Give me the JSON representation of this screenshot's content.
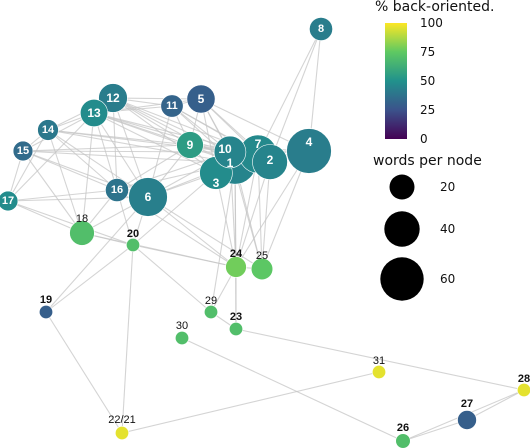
{
  "graph": {
    "nodes": [
      {
        "id": "8",
        "words": 15,
        "pct": 42,
        "label_pos": "inside"
      },
      {
        "id": "12",
        "words": 23,
        "pct": 42,
        "label_pos": "inside"
      },
      {
        "id": "11",
        "words": 14,
        "pct": 32,
        "label_pos": "inside"
      },
      {
        "id": "5",
        "words": 22,
        "pct": 30,
        "label_pos": "inside"
      },
      {
        "id": "13",
        "words": 21,
        "pct": 48,
        "label_pos": "inside"
      },
      {
        "id": "14",
        "words": 12,
        "pct": 40,
        "label_pos": "inside"
      },
      {
        "id": "15",
        "words": 11,
        "pct": 35,
        "label_pos": "inside"
      },
      {
        "id": "9",
        "words": 20,
        "pct": 55,
        "label_pos": "inside"
      },
      {
        "id": "10",
        "words": 28,
        "pct": 45,
        "label_pos": "inside"
      },
      {
        "id": "1",
        "words": 50,
        "pct": 45,
        "label_pos": "inside"
      },
      {
        "id": "3",
        "words": 30,
        "pct": 48,
        "label_pos": "inside"
      },
      {
        "id": "7",
        "words": 40,
        "pct": 47,
        "label_pos": "inside"
      },
      {
        "id": "2",
        "words": 34,
        "pct": 45,
        "label_pos": "inside"
      },
      {
        "id": "4",
        "words": 56,
        "pct": 42,
        "label_pos": "inside"
      },
      {
        "id": "16",
        "words": 15,
        "pct": 38,
        "label_pos": "inside"
      },
      {
        "id": "6",
        "words": 42,
        "pct": 43,
        "label_pos": "inside"
      },
      {
        "id": "17",
        "words": 11,
        "pct": 48,
        "label_pos": "inside"
      },
      {
        "id": "18",
        "words": 17,
        "pct": 70,
        "label_pos": "above"
      },
      {
        "id": "20",
        "words": 5,
        "pct": 70,
        "label_pos": "above"
      },
      {
        "id": "24",
        "words": 12,
        "pct": 78,
        "label_pos": "above"
      },
      {
        "id": "25",
        "words": 13,
        "pct": 74,
        "label_pos": "above"
      },
      {
        "id": "19",
        "words": 5,
        "pct": 30,
        "label_pos": "above"
      },
      {
        "id": "29",
        "words": 5,
        "pct": 70,
        "label_pos": "above"
      },
      {
        "id": "23",
        "words": 5,
        "pct": 70,
        "label_pos": "above"
      },
      {
        "id": "30",
        "words": 5,
        "pct": 70,
        "label_pos": "above"
      },
      {
        "id": "31",
        "words": 5,
        "pct": 96,
        "label_pos": "above"
      },
      {
        "id": "28",
        "words": 5,
        "pct": 96,
        "label_pos": "above"
      },
      {
        "id": "27",
        "words": 10,
        "pct": 30,
        "label_pos": "above"
      },
      {
        "id": "22/21",
        "words": 5,
        "pct": 96,
        "label_pos": "above"
      },
      {
        "id": "26",
        "words": 6,
        "pct": 70,
        "label_pos": "above"
      }
    ],
    "edges": [
      [
        "8",
        "4"
      ],
      [
        "8",
        "7"
      ],
      [
        "8",
        "2"
      ],
      [
        "12",
        "13"
      ],
      [
        "12",
        "11"
      ],
      [
        "12",
        "5"
      ],
      [
        "12",
        "9"
      ],
      [
        "12",
        "10"
      ],
      [
        "12",
        "1"
      ],
      [
        "12",
        "6"
      ],
      [
        "12",
        "14"
      ],
      [
        "12",
        "16"
      ],
      [
        "12",
        "3"
      ],
      [
        "12",
        "7"
      ],
      [
        "11",
        "5"
      ],
      [
        "11",
        "13"
      ],
      [
        "11",
        "10"
      ],
      [
        "11",
        "1"
      ],
      [
        "11",
        "9"
      ],
      [
        "11",
        "6"
      ],
      [
        "11",
        "7"
      ],
      [
        "11",
        "2"
      ],
      [
        "5",
        "10"
      ],
      [
        "5",
        "1"
      ],
      [
        "5",
        "9"
      ],
      [
        "5",
        "7"
      ],
      [
        "5",
        "13"
      ],
      [
        "5",
        "4"
      ],
      [
        "5",
        "2"
      ],
      [
        "5",
        "3"
      ],
      [
        "13",
        "14"
      ],
      [
        "13",
        "15"
      ],
      [
        "13",
        "9"
      ],
      [
        "13",
        "10"
      ],
      [
        "13",
        "1"
      ],
      [
        "13",
        "6"
      ],
      [
        "13",
        "16"
      ],
      [
        "13",
        "17"
      ],
      [
        "13",
        "18"
      ],
      [
        "13",
        "3"
      ],
      [
        "13",
        "7"
      ],
      [
        "14",
        "15"
      ],
      [
        "14",
        "9"
      ],
      [
        "14",
        "10"
      ],
      [
        "14",
        "1"
      ],
      [
        "14",
        "6"
      ],
      [
        "14",
        "16"
      ],
      [
        "14",
        "17"
      ],
      [
        "14",
        "18"
      ],
      [
        "15",
        "17"
      ],
      [
        "15",
        "9"
      ],
      [
        "15",
        "10"
      ],
      [
        "15",
        "6"
      ],
      [
        "15",
        "16"
      ],
      [
        "15",
        "1"
      ],
      [
        "15",
        "18"
      ],
      [
        "9",
        "10"
      ],
      [
        "9",
        "1"
      ],
      [
        "9",
        "3"
      ],
      [
        "9",
        "7"
      ],
      [
        "9",
        "6"
      ],
      [
        "9",
        "16"
      ],
      [
        "9",
        "2"
      ],
      [
        "9",
        "4"
      ],
      [
        "10",
        "1"
      ],
      [
        "10",
        "7"
      ],
      [
        "10",
        "2"
      ],
      [
        "10",
        "4"
      ],
      [
        "10",
        "3"
      ],
      [
        "10",
        "6"
      ],
      [
        "10",
        "16"
      ],
      [
        "10",
        "24"
      ],
      [
        "10",
        "25"
      ],
      [
        "1",
        "7"
      ],
      [
        "1",
        "2"
      ],
      [
        "1",
        "4"
      ],
      [
        "1",
        "3"
      ],
      [
        "1",
        "6"
      ],
      [
        "1",
        "16"
      ],
      [
        "1",
        "24"
      ],
      [
        "1",
        "25"
      ],
      [
        "1",
        "29"
      ],
      [
        "1",
        "23"
      ],
      [
        "7",
        "2"
      ],
      [
        "7",
        "4"
      ],
      [
        "7",
        "24"
      ],
      [
        "7",
        "25"
      ],
      [
        "7",
        "3"
      ],
      [
        "2",
        "4"
      ],
      [
        "2",
        "24"
      ],
      [
        "2",
        "25"
      ],
      [
        "4",
        "25"
      ],
      [
        "4",
        "24"
      ],
      [
        "3",
        "6"
      ],
      [
        "3",
        "24"
      ],
      [
        "3",
        "20"
      ],
      [
        "6",
        "16"
      ],
      [
        "6",
        "17"
      ],
      [
        "6",
        "18"
      ],
      [
        "6",
        "20"
      ],
      [
        "6",
        "24"
      ],
      [
        "6",
        "25"
      ],
      [
        "16",
        "17"
      ],
      [
        "16",
        "18"
      ],
      [
        "16",
        "20"
      ],
      [
        "16",
        "24"
      ],
      [
        "17",
        "18"
      ],
      [
        "17",
        "20"
      ],
      [
        "18",
        "20"
      ],
      [
        "18",
        "24"
      ],
      [
        "20",
        "19"
      ],
      [
        "20",
        "22/21"
      ],
      [
        "20",
        "24"
      ],
      [
        "19",
        "22/21"
      ],
      [
        "19",
        "6"
      ],
      [
        "24",
        "25"
      ],
      [
        "24",
        "23"
      ],
      [
        "24",
        "29"
      ],
      [
        "29",
        "23"
      ],
      [
        "29",
        "20"
      ],
      [
        "23",
        "28"
      ],
      [
        "30",
        "26"
      ],
      [
        "31",
        "22/21"
      ],
      [
        "28",
        "27"
      ],
      [
        "28",
        "26"
      ],
      [
        "27",
        "26"
      ]
    ]
  },
  "legend": {
    "color_title": "% back-oriented.",
    "color_ticks": [
      "100",
      "75",
      "50",
      "25",
      "0"
    ],
    "size_title": "words per node",
    "size_ticks": [
      "20",
      "40",
      "60"
    ]
  },
  "colors": {
    "viridis_stops": [
      "#440154",
      "#3b528b",
      "#21918c",
      "#5ec962",
      "#fde725"
    ],
    "edge": "#c6c6c6"
  }
}
